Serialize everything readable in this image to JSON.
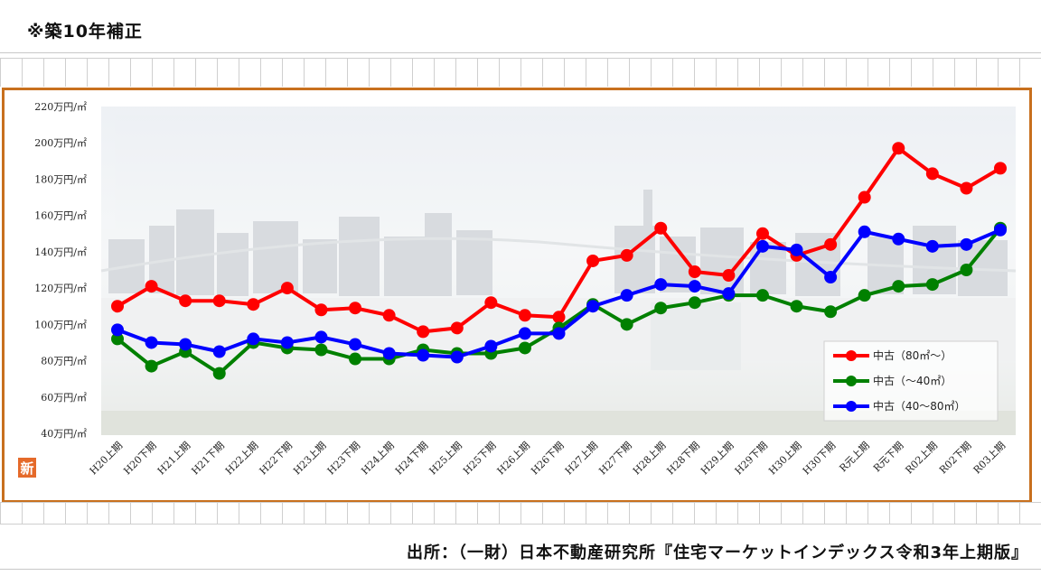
{
  "page": {
    "note": "※築10年補正",
    "source": "出所：（一財）日本不動産研究所『住宅マーケットインデックス令和3年上期版』",
    "new_badge": "新"
  },
  "chart_data": {
    "type": "line",
    "title": "",
    "xlabel": "",
    "ylabel": "",
    "ylim": [
      40,
      220
    ],
    "yticks": [
      "40万円/㎡",
      "60万円/㎡",
      "80万円/㎡",
      "100万円/㎡",
      "120万円/㎡",
      "140万円/㎡",
      "160万円/㎡",
      "180万円/㎡",
      "200万円/㎡",
      "220万円/㎡"
    ],
    "ytick_values": [
      40,
      60,
      80,
      100,
      120,
      140,
      160,
      180,
      200,
      220
    ],
    "categories": [
      "H20上期",
      "H20下期",
      "H21上期",
      "H21下期",
      "H22上期",
      "H22下期",
      "H23上期",
      "H23下期",
      "H24上期",
      "H24下期",
      "H25上期",
      "H25下期",
      "H26上期",
      "H26下期",
      "H27上期",
      "H27下期",
      "H28上期",
      "H28下期",
      "H29上期",
      "H29下期",
      "H30上期",
      "H30下期",
      "R元上期",
      "R元下期",
      "R02上期",
      "R02下期",
      "R03上期"
    ],
    "legend_position": "bottom-right",
    "series": [
      {
        "name": "中古（80㎡〜）",
        "color": "#ff0000",
        "values": [
          110,
          121,
          113,
          113,
          111,
          120,
          108,
          109,
          105,
          96,
          98,
          112,
          105,
          104,
          135,
          138,
          153,
          129,
          127,
          150,
          138,
          144,
          170,
          197,
          183,
          175,
          186
        ]
      },
      {
        "name": "中古（〜40㎡）",
        "color": "#008000",
        "values": [
          92,
          77,
          85,
          73,
          90,
          87,
          86,
          81,
          81,
          86,
          84,
          84,
          87,
          98,
          111,
          100,
          109,
          112,
          116,
          116,
          110,
          107,
          116,
          121,
          122,
          130,
          153
        ]
      },
      {
        "name": "中古（40〜80㎡）",
        "color": "#0000ff",
        "values": [
          97,
          90,
          89,
          85,
          92,
          90,
          93,
          89,
          84,
          83,
          82,
          88,
          95,
          95,
          110,
          116,
          122,
          121,
          117,
          143,
          141,
          126,
          151,
          147,
          143,
          144,
          152
        ]
      }
    ]
  }
}
